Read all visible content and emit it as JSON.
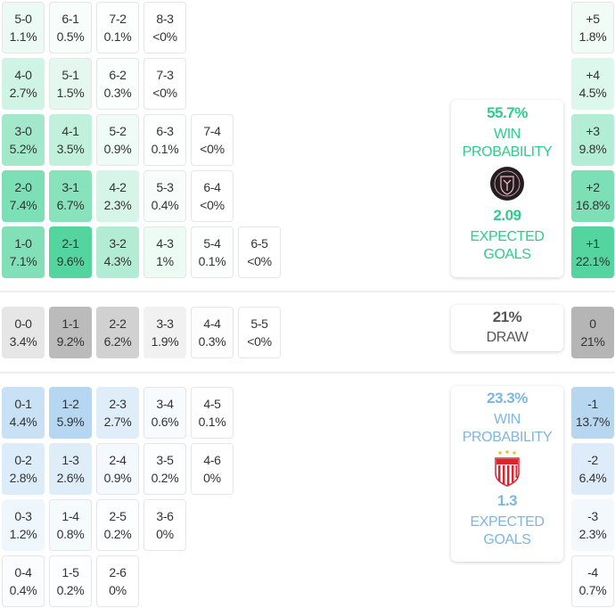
{
  "colors": {
    "home_accent": "#2ecc8a",
    "away_accent": "#7fb6de",
    "draw_accent": "#b5b5b5"
  },
  "home_scores": [
    [
      {
        "score": "5-0",
        "pct": "1.1%"
      },
      {
        "score": "6-1",
        "pct": "0.5%"
      },
      {
        "score": "7-2",
        "pct": "0.1%"
      },
      {
        "score": "8-3",
        "pct": "<0%"
      }
    ],
    [
      {
        "score": "4-0",
        "pct": "2.7%"
      },
      {
        "score": "5-1",
        "pct": "1.5%"
      },
      {
        "score": "6-2",
        "pct": "0.3%"
      },
      {
        "score": "7-3",
        "pct": "<0%"
      }
    ],
    [
      {
        "score": "3-0",
        "pct": "5.2%"
      },
      {
        "score": "4-1",
        "pct": "3.5%"
      },
      {
        "score": "5-2",
        "pct": "0.9%"
      },
      {
        "score": "6-3",
        "pct": "0.1%"
      },
      {
        "score": "7-4",
        "pct": "<0%"
      }
    ],
    [
      {
        "score": "2-0",
        "pct": "7.4%"
      },
      {
        "score": "3-1",
        "pct": "6.7%"
      },
      {
        "score": "4-2",
        "pct": "2.3%"
      },
      {
        "score": "5-3",
        "pct": "0.4%"
      },
      {
        "score": "6-4",
        "pct": "<0%"
      }
    ],
    [
      {
        "score": "1-0",
        "pct": "7.1%"
      },
      {
        "score": "2-1",
        "pct": "9.6%"
      },
      {
        "score": "3-2",
        "pct": "4.3%"
      },
      {
        "score": "4-3",
        "pct": "1%"
      },
      {
        "score": "5-4",
        "pct": "0.1%"
      },
      {
        "score": "6-5",
        "pct": "<0%"
      }
    ]
  ],
  "draw_scores": [
    {
      "score": "0-0",
      "pct": "3.4%"
    },
    {
      "score": "1-1",
      "pct": "9.2%"
    },
    {
      "score": "2-2",
      "pct": "6.2%"
    },
    {
      "score": "3-3",
      "pct": "1.9%"
    },
    {
      "score": "4-4",
      "pct": "0.3%"
    },
    {
      "score": "5-5",
      "pct": "<0%"
    }
  ],
  "away_scores": [
    [
      {
        "score": "0-1",
        "pct": "4.4%"
      },
      {
        "score": "1-2",
        "pct": "5.9%"
      },
      {
        "score": "2-3",
        "pct": "2.7%"
      },
      {
        "score": "3-4",
        "pct": "0.6%"
      },
      {
        "score": "4-5",
        "pct": "0.1%"
      }
    ],
    [
      {
        "score": "0-2",
        "pct": "2.8%"
      },
      {
        "score": "1-3",
        "pct": "2.6%"
      },
      {
        "score": "2-4",
        "pct": "0.9%"
      },
      {
        "score": "3-5",
        "pct": "0.2%"
      },
      {
        "score": "4-6",
        "pct": "0%"
      }
    ],
    [
      {
        "score": "0-3",
        "pct": "1.2%"
      },
      {
        "score": "1-4",
        "pct": "0.8%"
      },
      {
        "score": "2-5",
        "pct": "0.2%"
      },
      {
        "score": "3-6",
        "pct": "0%"
      }
    ],
    [
      {
        "score": "0-4",
        "pct": "0.4%"
      },
      {
        "score": "1-5",
        "pct": "0.2%"
      },
      {
        "score": "2-6",
        "pct": "0%"
      }
    ]
  ],
  "margins": {
    "home": [
      {
        "label": "+5",
        "pct": "1.8%"
      },
      {
        "label": "+4",
        "pct": "4.5%"
      },
      {
        "label": "+3",
        "pct": "9.8%"
      },
      {
        "label": "+2",
        "pct": "16.8%"
      },
      {
        "label": "+1",
        "pct": "22.1%"
      }
    ],
    "draw": {
      "label": "0",
      "pct": "21%"
    },
    "away": [
      {
        "label": "-1",
        "pct": "13.7%"
      },
      {
        "label": "-2",
        "pct": "6.4%"
      },
      {
        "label": "-3",
        "pct": "2.3%"
      },
      {
        "label": "-4",
        "pct": "0.7%"
      }
    ]
  },
  "home_card": {
    "win_pct": "55.7%",
    "win_label_1": "WIN",
    "win_label_2": "PROBABILITY",
    "team_logo": "inter-miami-crest-icon",
    "xg": "2.09",
    "xg_label_1": "EXPECTED",
    "xg_label_2": "GOALS"
  },
  "draw_card": {
    "pct": "21%",
    "label": "DRAW"
  },
  "away_card": {
    "win_pct": "23.3%",
    "win_label_1": "WIN",
    "win_label_2": "PROBABILITY",
    "team_logo": "necaxa-crest-icon",
    "xg": "1.3",
    "xg_label_1": "EXPECTED",
    "xg_label_2": "GOALS"
  }
}
